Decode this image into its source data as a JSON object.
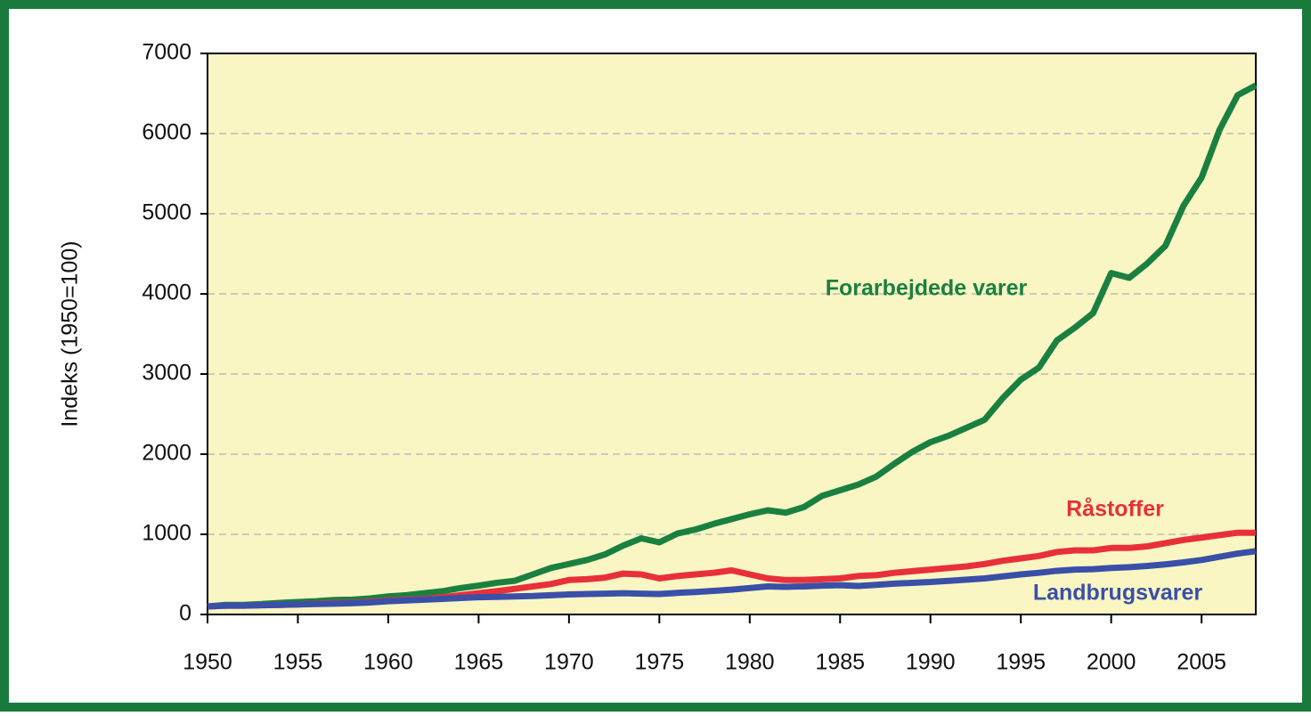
{
  "chart_data": {
    "type": "line",
    "y_label": "Indeks (1950=100)",
    "x": [
      1950,
      1951,
      1952,
      1953,
      1954,
      1955,
      1956,
      1957,
      1958,
      1959,
      1960,
      1961,
      1962,
      1963,
      1964,
      1965,
      1966,
      1967,
      1968,
      1969,
      1970,
      1971,
      1972,
      1973,
      1974,
      1975,
      1976,
      1977,
      1978,
      1979,
      1980,
      1981,
      1982,
      1983,
      1984,
      1985,
      1986,
      1987,
      1988,
      1989,
      1990,
      1991,
      1992,
      1993,
      1994,
      1995,
      1996,
      1997,
      1998,
      1999,
      2000,
      2001,
      2002,
      2003,
      2004,
      2005,
      2006,
      2007,
      2008
    ],
    "xlim": [
      1950,
      2008
    ],
    "xticks": [
      1950,
      1955,
      1960,
      1965,
      1970,
      1975,
      1980,
      1985,
      1990,
      1995,
      2000,
      2005
    ],
    "ylim": [
      0,
      7000
    ],
    "yticks": [
      0,
      1000,
      2000,
      3000,
      4000,
      5000,
      6000,
      7000
    ],
    "grid": true,
    "series": [
      {
        "name": "Forarbejdede varer",
        "color": "#1a8040",
        "values": [
          100,
          120,
          120,
          130,
          145,
          155,
          165,
          180,
          185,
          200,
          225,
          240,
          265,
          290,
          330,
          360,
          395,
          420,
          500,
          580,
          630,
          680,
          750,
          860,
          950,
          900,
          1010,
          1060,
          1130,
          1190,
          1250,
          1300,
          1270,
          1340,
          1480,
          1550,
          1620,
          1720,
          1880,
          2030,
          2150,
          2230,
          2330,
          2430,
          2700,
          2930,
          3080,
          3420,
          3580,
          3760,
          4260,
          4200,
          4380,
          4600,
          5100,
          5450,
          6050,
          6480,
          6600
        ]
      },
      {
        "name": "Råstoffer",
        "color": "#e8303a",
        "values": [
          100,
          110,
          110,
          115,
          120,
          125,
          135,
          145,
          145,
          160,
          175,
          185,
          195,
          215,
          240,
          265,
          290,
          320,
          350,
          380,
          430,
          440,
          460,
          510,
          500,
          450,
          480,
          500,
          520,
          550,
          500,
          450,
          430,
          430,
          440,
          450,
          480,
          490,
          520,
          540,
          560,
          580,
          600,
          630,
          670,
          700,
          730,
          780,
          800,
          800,
          830,
          830,
          850,
          890,
          930,
          960,
          990,
          1020,
          1020
        ]
      },
      {
        "name": "Landbrugsvarer",
        "color": "#3a4fa8",
        "values": [
          100,
          110,
          110,
          115,
          120,
          125,
          130,
          135,
          140,
          150,
          165,
          175,
          185,
          195,
          205,
          215,
          220,
          225,
          230,
          240,
          250,
          255,
          260,
          265,
          260,
          255,
          270,
          280,
          295,
          310,
          330,
          350,
          345,
          350,
          360,
          365,
          355,
          370,
          385,
          395,
          405,
          420,
          435,
          450,
          475,
          500,
          520,
          545,
          560,
          565,
          580,
          590,
          605,
          625,
          650,
          680,
          720,
          760,
          790
        ]
      }
    ]
  }
}
